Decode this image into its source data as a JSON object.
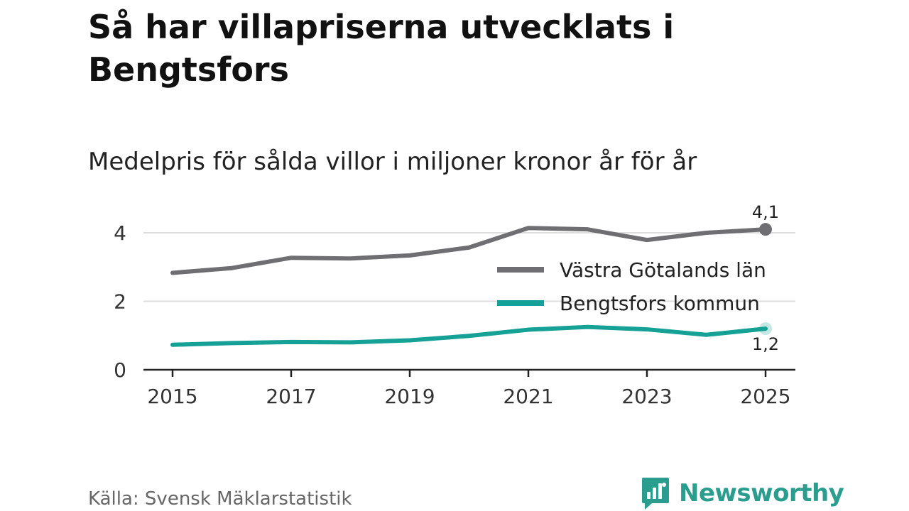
{
  "title": "Så har villapriserna utvecklats i Bengtsfors",
  "subtitle": "Medelpris för sålda villor i miljoner kronor år för år",
  "source": "Källa: Svensk Mäklarstatistik",
  "brand": {
    "name": "Newsworthy",
    "icon": "newsworthy-logo-icon",
    "color": "#2a9d8f"
  },
  "chart_data": {
    "type": "line",
    "title": "Så har villapriserna utvecklats i Bengtsfors",
    "subtitle": "Medelpris för sålda villor i miljoner kronor år för år",
    "xlabel": "",
    "ylabel": "",
    "x": [
      2015,
      2016,
      2017,
      2018,
      2019,
      2020,
      2021,
      2022,
      2023,
      2024,
      2025
    ],
    "x_ticks": [
      "2015",
      "2017",
      "2019",
      "2021",
      "2023",
      "2025"
    ],
    "y_ticks": [
      "0",
      "2",
      "4"
    ],
    "ylim": [
      0,
      4.8
    ],
    "grid": true,
    "legend_position": "right",
    "series": [
      {
        "name": "Västra Götalands län",
        "color": "#6e6e73",
        "values": [
          2.83,
          2.97,
          3.27,
          3.25,
          3.34,
          3.57,
          4.14,
          4.1,
          3.79,
          4.0,
          4.1
        ],
        "end_label": "4,1"
      },
      {
        "name": "Bengtsfors kommun",
        "color": "#15a195",
        "values": [
          0.73,
          0.78,
          0.81,
          0.8,
          0.86,
          0.99,
          1.17,
          1.25,
          1.18,
          1.02,
          1.2
        ],
        "end_label": "1,2"
      }
    ]
  }
}
